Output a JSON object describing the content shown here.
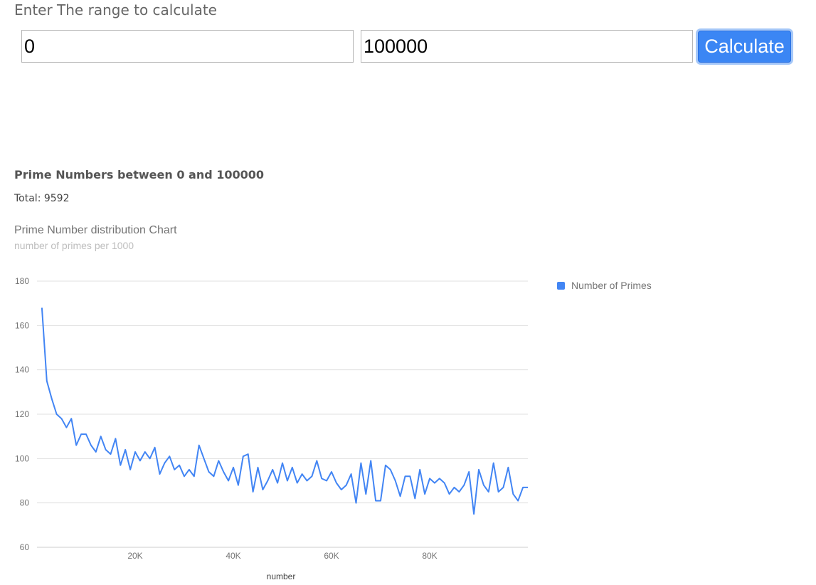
{
  "form": {
    "title": "Enter The range to calculate",
    "start_value": "0",
    "end_value": "100000",
    "calculate_label": "Calculate"
  },
  "result": {
    "heading": "Prime Numbers between 0 and 100000",
    "total_text": "Total: 9592"
  },
  "chart_data": {
    "type": "line",
    "title": "Prime Number distribution Chart",
    "subtitle": "number of primes per 1000",
    "xlabel": "number",
    "ylabel": "",
    "xlim": [
      0,
      100000
    ],
    "ylim": [
      60,
      180
    ],
    "yticks": [
      60,
      80,
      100,
      120,
      140,
      160,
      180
    ],
    "xticks": [
      20000,
      40000,
      60000,
      80000
    ],
    "xtick_labels": [
      "20K",
      "40K",
      "60K",
      "80K"
    ],
    "legend_position": "right",
    "grid": true,
    "series": [
      {
        "name": "Number of Primes",
        "color": "#4285f4",
        "x": [
          1000,
          2000,
          3000,
          4000,
          5000,
          6000,
          7000,
          8000,
          9000,
          10000,
          11000,
          12000,
          13000,
          14000,
          15000,
          16000,
          17000,
          18000,
          19000,
          20000,
          21000,
          22000,
          23000,
          24000,
          25000,
          26000,
          27000,
          28000,
          29000,
          30000,
          31000,
          32000,
          33000,
          34000,
          35000,
          36000,
          37000,
          38000,
          39000,
          40000,
          41000,
          42000,
          43000,
          44000,
          45000,
          46000,
          47000,
          48000,
          49000,
          50000,
          51000,
          52000,
          53000,
          54000,
          55000,
          56000,
          57000,
          58000,
          59000,
          60000,
          61000,
          62000,
          63000,
          64000,
          65000,
          66000,
          67000,
          68000,
          69000,
          70000,
          71000,
          72000,
          73000,
          74000,
          75000,
          76000,
          77000,
          78000,
          79000,
          80000,
          81000,
          82000,
          83000,
          84000,
          85000,
          86000,
          87000,
          88000,
          89000,
          90000,
          91000,
          92000,
          93000,
          94000,
          95000,
          96000,
          97000,
          98000,
          99000,
          100000
        ],
        "values": [
          168,
          135,
          127,
          120,
          118,
          114,
          118,
          106,
          111,
          111,
          106,
          103,
          110,
          104,
          102,
          109,
          97,
          104,
          95,
          103,
          99,
          103,
          100,
          105,
          93,
          98,
          101,
          95,
          97,
          92,
          95,
          92,
          106,
          100,
          94,
          92,
          99,
          94,
          90,
          96,
          88,
          101,
          102,
          85,
          96,
          86,
          90,
          95,
          89,
          98,
          90,
          96,
          89,
          93,
          90,
          92,
          99,
          91,
          90,
          94,
          89,
          86,
          88,
          93,
          80,
          98,
          84,
          99,
          81,
          81,
          97,
          95,
          90,
          83,
          92,
          92,
          82,
          95,
          84,
          91,
          89,
          91,
          89,
          84,
          87,
          85,
          88,
          94,
          75,
          95,
          88,
          85,
          98,
          85,
          87,
          96,
          84,
          81,
          87,
          87
        ]
      }
    ]
  }
}
